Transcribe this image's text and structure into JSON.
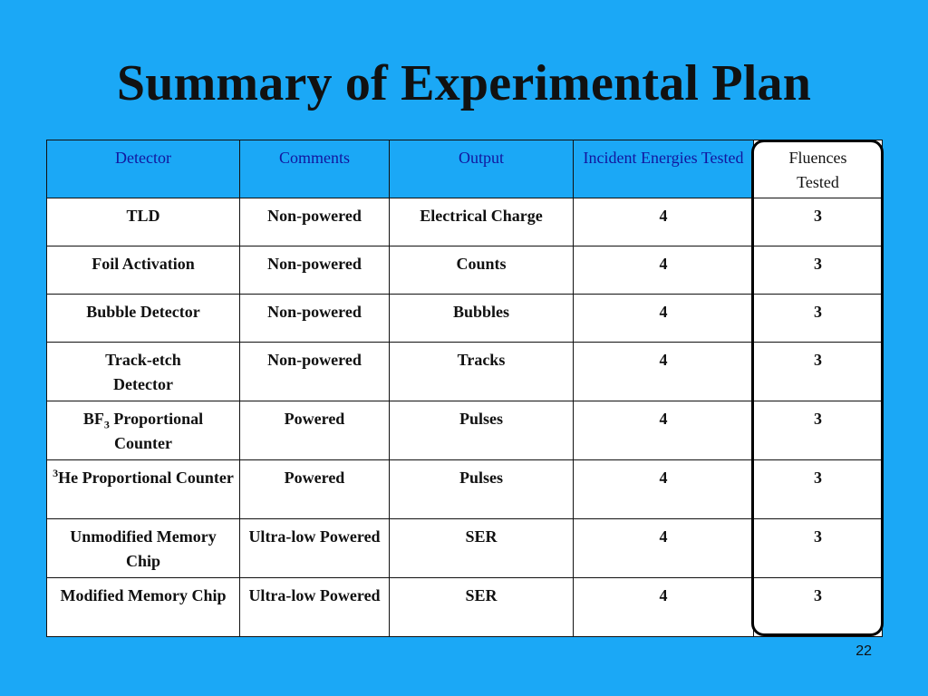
{
  "title": "Summary of Experimental Plan",
  "page_number": "22",
  "headers": {
    "detector": "Detector",
    "comments": "Comments",
    "output": "Output",
    "energies": "Incident Energies Tested",
    "fluences_line1": "Fluences",
    "fluences_line2": "Tested"
  },
  "rows": [
    {
      "detector_pre": "TLD",
      "comments": "Non-powered",
      "output": "Electrical Charge",
      "energies": "4",
      "fluences": "3"
    },
    {
      "detector_pre": "Foil Activation",
      "comments": "Non-powered",
      "output": "Counts",
      "energies": "4",
      "fluences": "3"
    },
    {
      "detector_pre": "Bubble Detector",
      "comments": "Non-powered",
      "output": "Bubbles",
      "energies": "4",
      "fluences": "3"
    },
    {
      "detector_pre": "Track-etch",
      "detector_post": "Detector",
      "comments": "Non-powered",
      "output": "Tracks",
      "energies": "4",
      "fluences": "3"
    },
    {
      "detector_pre": "BF",
      "detector_sub": "3",
      "detector_post": " Proportional Counter",
      "comments": "Powered",
      "output": "Pulses",
      "energies": "4",
      "fluences": "3"
    },
    {
      "detector_sup": "3",
      "detector_pre": "He Proportional Counter",
      "comments": "Powered",
      "output": "Pulses",
      "energies": "4",
      "fluences": "3"
    },
    {
      "detector_pre": "Unmodified Memory Chip",
      "comments": "Ultra-low Powered",
      "output": "SER",
      "energies": "4",
      "fluences": "3"
    },
    {
      "detector_pre": "Modified Memory Chip",
      "comments": "Ultra-low Powered",
      "output": "SER",
      "energies": "4",
      "fluences": "3"
    }
  ]
}
